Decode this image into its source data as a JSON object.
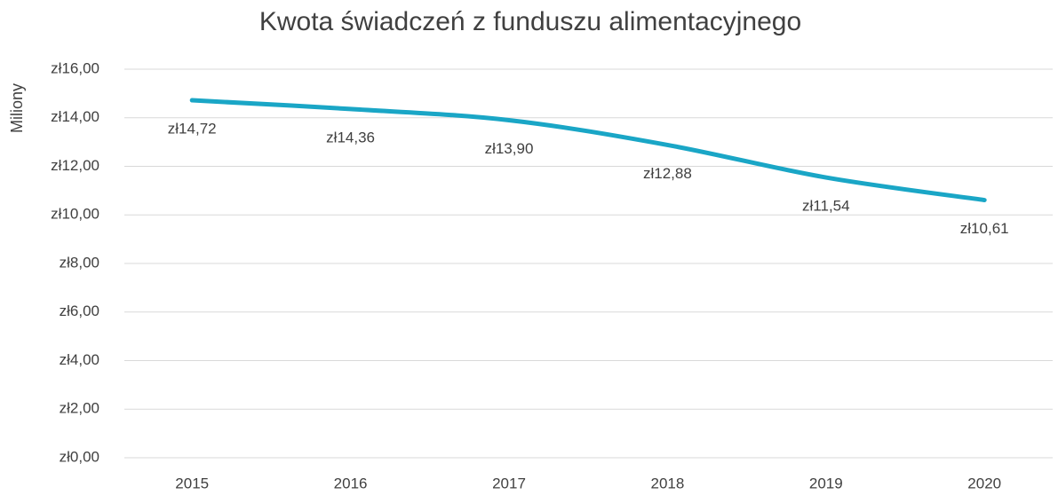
{
  "chart_data": {
    "type": "line",
    "title": "Kwota świadczeń z funduszu alimentacyjnego",
    "y_label": "Miliony",
    "categories": [
      "2015",
      "2016",
      "2017",
      "2018",
      "2019",
      "2020"
    ],
    "series": [
      {
        "name": "Kwota",
        "color": "#1aa6c6",
        "values": [
          14.72,
          14.36,
          13.9,
          12.88,
          11.54,
          10.61
        ],
        "value_labels": [
          "zł14,72",
          "zł14,36",
          "zł13,90",
          "zł12,88",
          "zł11,54",
          "zł10,61"
        ]
      }
    ],
    "ylim": [
      0,
      16
    ],
    "yticks": [
      {
        "value": 0,
        "label": "zł0,00"
      },
      {
        "value": 2,
        "label": "zł2,00"
      },
      {
        "value": 4,
        "label": "zł4,00"
      },
      {
        "value": 6,
        "label": "zł6,00"
      },
      {
        "value": 8,
        "label": "zł8,00"
      },
      {
        "value": 10,
        "label": "zł10,00"
      },
      {
        "value": 12,
        "label": "zł12,00"
      },
      {
        "value": 14,
        "label": "zł14,00"
      },
      {
        "value": 16,
        "label": "zł16,00"
      }
    ],
    "grid": true
  }
}
